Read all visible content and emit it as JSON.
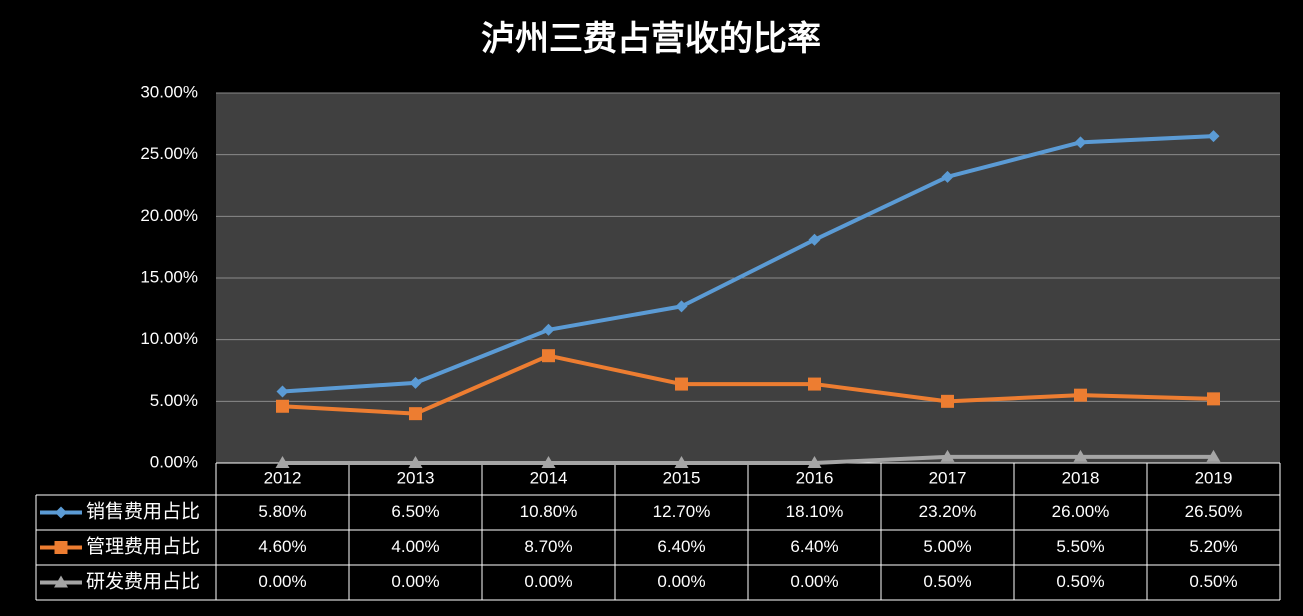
{
  "chart_data": {
    "type": "line",
    "title": "泸州三费占营收的比率",
    "categories": [
      "2012",
      "2013",
      "2014",
      "2015",
      "2016",
      "2017",
      "2018",
      "2019"
    ],
    "series": [
      {
        "name": "销售费用占比",
        "color": "#5b9bd5",
        "marker": "diamond",
        "values": [
          5.8,
          6.5,
          10.8,
          12.7,
          18.1,
          23.2,
          26.0,
          26.5
        ],
        "value_labels": [
          "5.80%",
          "6.50%",
          "10.80%",
          "12.70%",
          "18.10%",
          "23.20%",
          "26.00%",
          "26.50%"
        ]
      },
      {
        "name": "管理费用占比",
        "color": "#ed7d31",
        "marker": "square",
        "values": [
          4.6,
          4.0,
          8.7,
          6.4,
          6.4,
          5.0,
          5.5,
          5.2
        ],
        "value_labels": [
          "4.60%",
          "4.00%",
          "8.70%",
          "6.40%",
          "6.40%",
          "5.00%",
          "5.50%",
          "5.20%"
        ]
      },
      {
        "name": "研发费用占比",
        "color": "#a5a5a5",
        "marker": "triangle",
        "values": [
          0,
          0,
          0,
          0,
          0,
          0.5,
          0.5,
          0.5
        ],
        "value_labels": [
          "0.00%",
          "0.00%",
          "0.00%",
          "0.00%",
          "0.00%",
          "0.50%",
          "0.50%",
          "0.50%"
        ]
      }
    ],
    "ylim": [
      0,
      30
    ],
    "yticks": [
      {
        "value": 0,
        "label": "0.00%"
      },
      {
        "value": 5,
        "label": "5.00%"
      },
      {
        "value": 10,
        "label": "10.00%"
      },
      {
        "value": 15,
        "label": "15.00%"
      },
      {
        "value": 20,
        "label": "20.00%"
      },
      {
        "value": 25,
        "label": "25.00%"
      },
      {
        "value": 30,
        "label": "30.00%"
      }
    ],
    "grid": true
  }
}
